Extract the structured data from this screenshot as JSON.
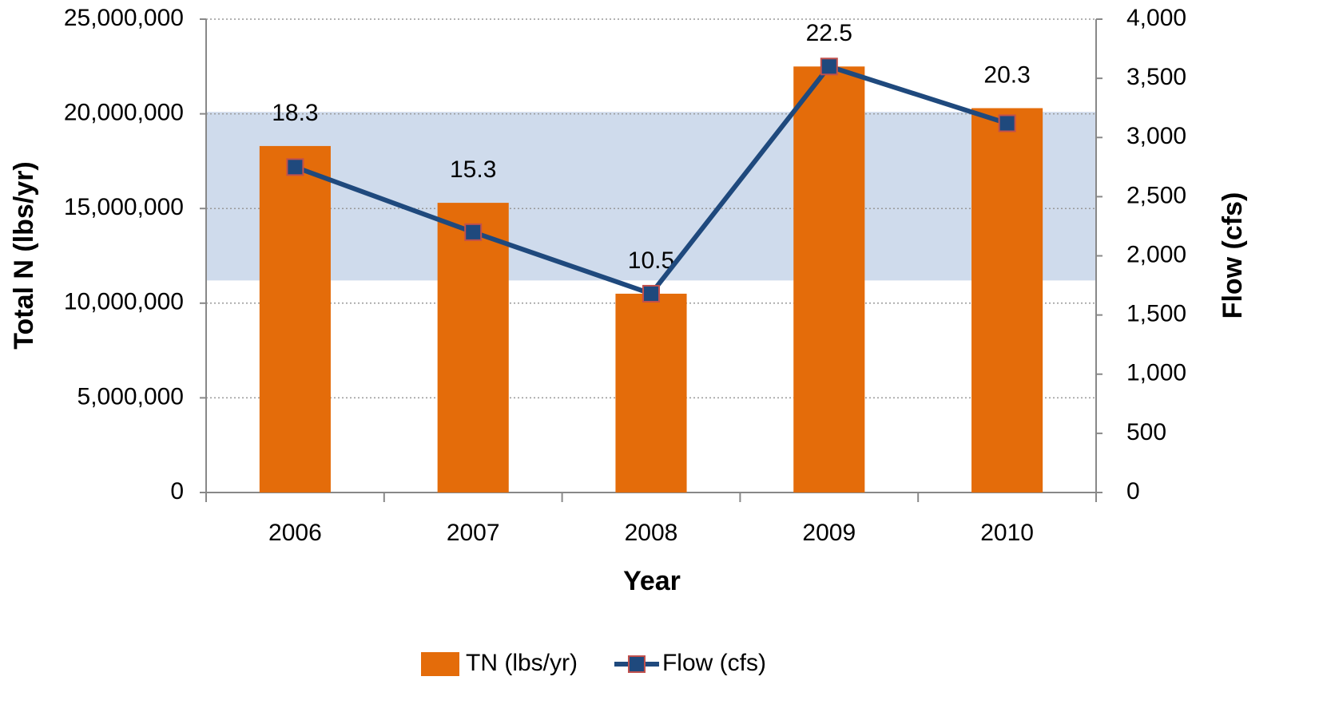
{
  "chart_data": {
    "type": "bar",
    "xlabel": "Year",
    "ylabel": "Total N (lbs/yr)",
    "y2label": "Flow (cfs)",
    "categories": [
      "2006",
      "2007",
      "2008",
      "2009",
      "2010"
    ],
    "series": [
      {
        "name": "TN (lbs/yr)",
        "type": "bar",
        "color": "#e46c0a",
        "values": [
          18300000,
          15300000,
          10500000,
          22500000,
          20300000
        ],
        "value_labels": [
          "18.3",
          "15.3",
          "10.5",
          "22.5",
          "20.3"
        ]
      },
      {
        "name": "Flow (cfs)",
        "type": "line",
        "axis": "y2",
        "color": "#1f497d",
        "marker_edge": "#c0504d",
        "values": [
          2750,
          2200,
          1680,
          3600,
          3120
        ]
      }
    ],
    "shaded_range": {
      "values": [
        11200000,
        20100000
      ],
      "color": "#cfdbec"
    },
    "ylim": [
      0,
      25000000
    ],
    "yticks": [
      0,
      {
        "value": 5000000,
        "label": "5,000,000"
      },
      {
        "value": 10000000,
        "label": "10,000,000"
      },
      {
        "value": 15000000,
        "label": "15,000,000"
      },
      {
        "value": 20000000,
        "label": "20,000,000"
      },
      {
        "value": 25000000,
        "label": "25,000,000"
      }
    ],
    "y2lim": [
      0,
      4000
    ],
    "y2ticks": [
      0,
      500,
      {
        "value": 1000,
        "label": "1,000"
      },
      {
        "value": 1500,
        "label": "1,500"
      },
      {
        "value": 2000,
        "label": "2,000"
      },
      {
        "value": 2500,
        "label": "2,500"
      },
      {
        "value": 3000,
        "label": "3,000"
      },
      {
        "value": 3500,
        "label": "3,500"
      },
      {
        "value": 4000,
        "label": "4,000"
      }
    ],
    "grid": true,
    "legend": "bottom"
  }
}
